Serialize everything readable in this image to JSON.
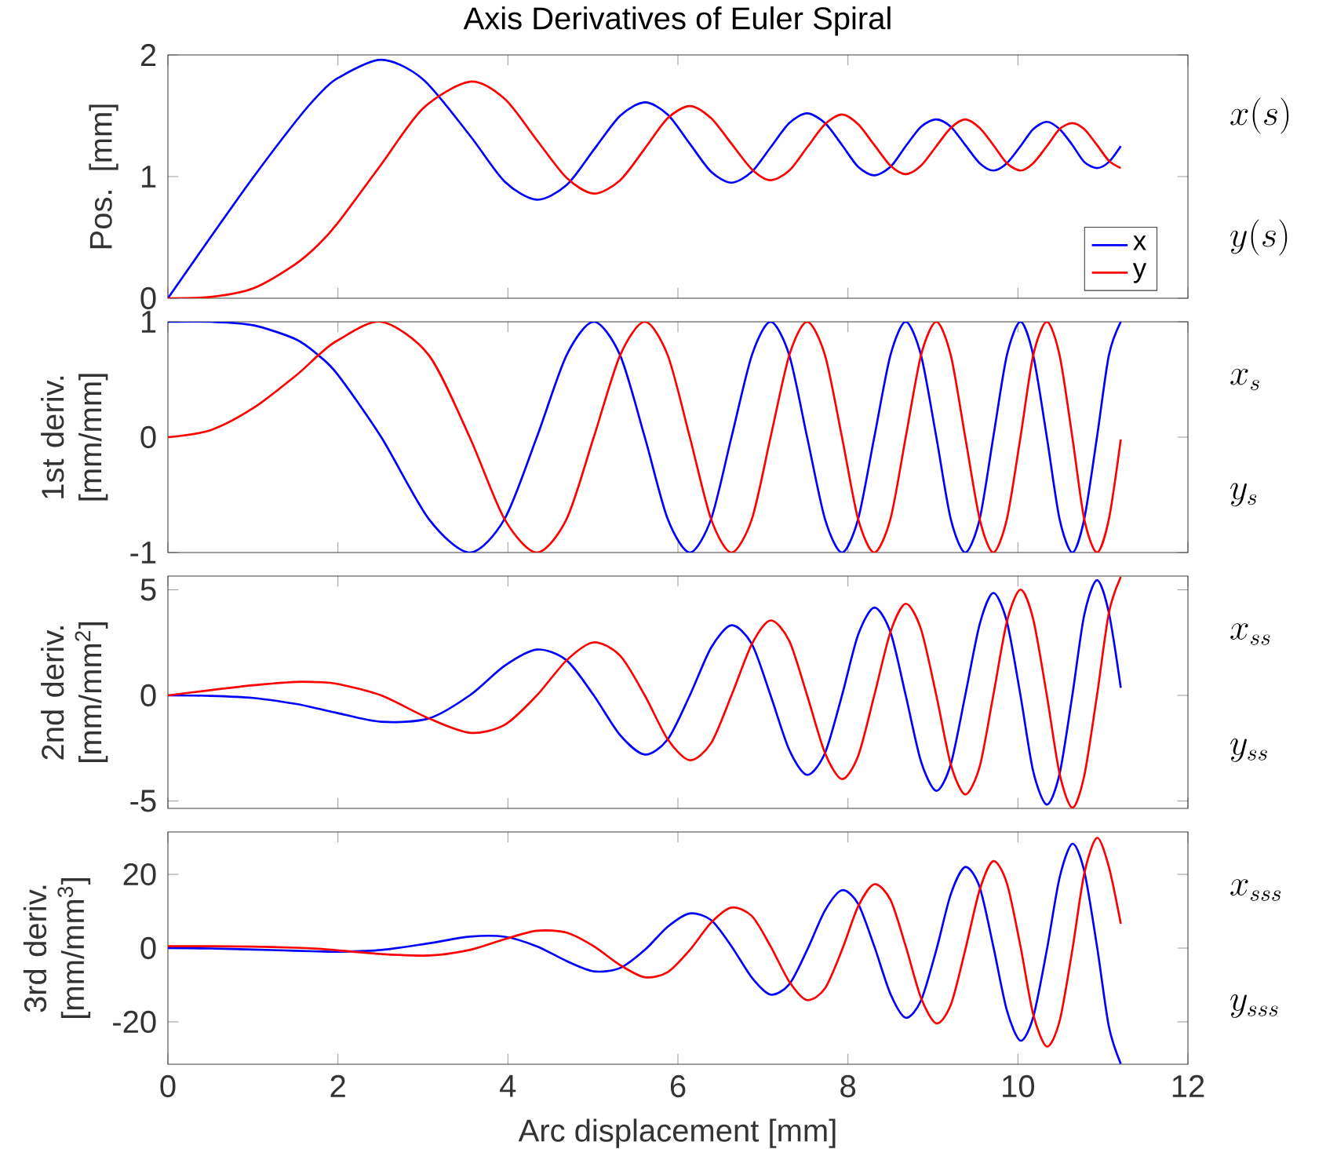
{
  "chart_data": [
    {
      "type": "line",
      "title": "Axis Derivatives of Euler Spiral",
      "ylabel": "Pos. [mm]",
      "xlim": [
        0,
        12
      ],
      "ylim": [
        0,
        2
      ],
      "xticks": [
        0,
        2,
        4,
        6,
        8,
        10,
        12
      ],
      "yticks": [
        0,
        1,
        2
      ],
      "tick_labels": "y",
      "legend": "bottom right",
      "annotations": [
        "x(s)",
        "y(s)"
      ],
      "x": [
        0,
        0.5,
        1,
        1.5,
        1.77,
        2,
        2.51,
        3,
        3.55,
        3.96,
        4.34,
        4.69,
        5.01,
        5.32,
        5.61,
        5.88,
        6.14,
        6.39,
        6.63,
        6.87,
        7.09,
        7.31,
        7.52,
        7.73,
        7.93,
        8.12,
        8.31,
        8.5,
        8.68,
        8.86,
        9.04,
        9.21,
        9.38,
        9.55,
        9.71,
        9.87,
        10.03,
        10.18,
        10.34,
        10.49,
        10.64,
        10.78,
        10.93,
        11.07,
        11.21
      ],
      "series": [
        {
          "name": "x",
          "color": "#0000ff",
          "values": [
            0,
            0.5,
            0.99,
            1.45,
            1.67,
            1.81,
            1.96,
            1.8,
            1.34,
            0.96,
            0.81,
            0.93,
            1.22,
            1.5,
            1.61,
            1.51,
            1.27,
            1.04,
            0.95,
            1.04,
            1.24,
            1.44,
            1.52,
            1.44,
            1.26,
            1.08,
            1.01,
            1.08,
            1.25,
            1.41,
            1.47,
            1.41,
            1.26,
            1.11,
            1.05,
            1.11,
            1.25,
            1.39,
            1.45,
            1.39,
            1.26,
            1.12,
            1.07,
            1.12,
            1.25
          ]
        },
        {
          "name": "y",
          "color": "#ff0000",
          "values": [
            0,
            0.01,
            0.08,
            0.28,
            0.44,
            0.62,
            1.1,
            1.56,
            1.78,
            1.64,
            1.3,
            0.99,
            0.86,
            0.97,
            1.23,
            1.48,
            1.58,
            1.48,
            1.27,
            1.06,
            0.97,
            1.05,
            1.24,
            1.43,
            1.51,
            1.43,
            1.26,
            1.09,
            1.02,
            1.09,
            1.25,
            1.4,
            1.47,
            1.4,
            1.26,
            1.11,
            1.05,
            1.11,
            1.25,
            1.39,
            1.44,
            1.39,
            1.26,
            1.13,
            1.07
          ]
        }
      ]
    },
    {
      "type": "line",
      "ylabel": "1st deriv. [mm/mm]",
      "xlim": [
        0,
        12
      ],
      "ylim": [
        -1,
        1
      ],
      "xticks": [
        0,
        2,
        4,
        6,
        8,
        10,
        12
      ],
      "yticks": [
        -1,
        0,
        1
      ],
      "tick_labels": "y",
      "annotations": [
        "x_{s}",
        "y_{s}"
      ],
      "x": [
        0,
        0.5,
        1,
        1.5,
        1.77,
        2,
        2.51,
        3.07,
        3.55,
        3.96,
        4.34,
        4.69,
        5.01,
        5.32,
        5.61,
        5.88,
        6.14,
        6.39,
        6.63,
        6.87,
        7.09,
        7.31,
        7.52,
        7.73,
        7.93,
        8.12,
        8.31,
        8.5,
        8.68,
        8.86,
        9.04,
        9.21,
        9.38,
        9.55,
        9.71,
        9.87,
        10.03,
        10.18,
        10.34,
        10.49,
        10.64,
        10.78,
        10.93,
        11.07,
        11.21
      ],
      "series": [
        {
          "color": "#0000ff",
          "values": [
            1,
            1,
            0.97,
            0.85,
            0.71,
            0.54,
            0,
            -0.71,
            -1,
            -0.71,
            0,
            0.71,
            1,
            0.71,
            0,
            -0.71,
            -1,
            -0.71,
            0,
            0.71,
            1,
            0.71,
            0,
            -0.71,
            -1,
            -0.71,
            0,
            0.71,
            1,
            0.71,
            0,
            -0.71,
            -1,
            -0.71,
            0,
            0.71,
            1,
            0.71,
            0,
            -0.71,
            -1,
            -0.71,
            0,
            0.71,
            1
          ]
        },
        {
          "color": "#ff0000",
          "values": [
            0,
            0.06,
            0.25,
            0.53,
            0.71,
            0.84,
            1,
            0.71,
            0,
            -0.71,
            -1,
            -0.71,
            0,
            0.71,
            1,
            0.71,
            0,
            -0.71,
            -1,
            -0.71,
            0,
            0.71,
            1,
            0.71,
            0,
            -0.71,
            -1,
            -0.71,
            0,
            0.71,
            1,
            0.71,
            0,
            -0.71,
            -1,
            -0.71,
            0,
            0.71,
            1,
            0.71,
            0,
            -0.71,
            -1,
            -0.71,
            -0.02
          ]
        }
      ]
    },
    {
      "type": "line",
      "ylabel": "2nd deriv. [mm/mm$^{2}$]",
      "xlim": [
        0,
        12
      ],
      "ylim": [
        -5.35,
        5.65
      ],
      "xticks": [
        0,
        2,
        4,
        6,
        8,
        10,
        12
      ],
      "yticks": [
        -5,
        0,
        5
      ],
      "tick_labels": "y",
      "annotations": [
        "x_{ss}",
        "y_{ss}"
      ],
      "x": [
        0,
        0.5,
        1,
        1.5,
        1.77,
        2,
        2.51,
        3.07,
        3.55,
        3.96,
        4.34,
        4.69,
        5.01,
        5.32,
        5.61,
        5.88,
        6.14,
        6.39,
        6.63,
        6.87,
        7.09,
        7.31,
        7.52,
        7.73,
        7.93,
        8.12,
        8.31,
        8.5,
        8.68,
        8.86,
        9.04,
        9.21,
        9.38,
        9.55,
        9.71,
        9.87,
        10.03,
        10.18,
        10.34,
        10.49,
        10.64,
        10.78,
        10.93,
        11.07,
        11.21
      ],
      "series": [
        {
          "color": "#0000ff",
          "values": [
            0,
            -0.02,
            -0.12,
            -0.4,
            -0.63,
            -0.84,
            -1.25,
            -1.09,
            0,
            1.4,
            2.17,
            1.66,
            0,
            -1.88,
            -2.8,
            -2.08,
            0,
            2.26,
            3.32,
            2.43,
            0,
            -2.58,
            -3.76,
            -2.73,
            0,
            2.87,
            4.16,
            3.0,
            0,
            -3.13,
            -4.52,
            -3.26,
            0,
            3.37,
            4.85,
            3.49,
            0,
            -3.6,
            -5.17,
            -3.71,
            0,
            3.81,
            5.46,
            3.91,
            0.36
          ]
        },
        {
          "color": "#ff0000",
          "values": [
            0,
            0.25,
            0.48,
            0.64,
            0.63,
            0.54,
            0,
            -1.09,
            -1.77,
            -1.4,
            0,
            1.66,
            2.51,
            1.88,
            0,
            -2.08,
            -3.07,
            -2.26,
            0,
            2.43,
            3.55,
            2.58,
            0,
            -2.73,
            -3.96,
            -2.87,
            0,
            3.0,
            4.34,
            3.13,
            0,
            -3.26,
            -4.69,
            -3.37,
            0,
            3.49,
            5.01,
            3.6,
            0,
            -3.71,
            -5.32,
            -3.81,
            0,
            3.91,
            5.61
          ]
        }
      ]
    },
    {
      "type": "line",
      "xlabel": "Arc displacement [mm]",
      "ylabel": "3rd deriv. [mm/mm$^{3}$]",
      "xlim": [
        0,
        12
      ],
      "ylim": [
        -31.5,
        31.5
      ],
      "xticks": [
        0,
        2,
        4,
        6,
        8,
        10,
        12
      ],
      "yticks": [
        -20,
        0,
        20
      ],
      "annotations": [
        "x_{sss}",
        "y_{sss}"
      ],
      "x": [
        0,
        0.5,
        1,
        1.5,
        1.77,
        2,
        2.51,
        3.07,
        3.55,
        3.96,
        4.34,
        4.69,
        5.01,
        5.32,
        5.61,
        5.88,
        6.14,
        6.39,
        6.63,
        6.87,
        7.09,
        7.31,
        7.52,
        7.73,
        7.93,
        8.12,
        8.31,
        8.5,
        8.68,
        8.86,
        9.04,
        9.21,
        9.38,
        9.55,
        9.71,
        9.87,
        10.03,
        10.18,
        10.34,
        10.49,
        10.64,
        10.78,
        10.93,
        11.07,
        11.21
      ],
      "series": [
        {
          "color": "#0000ff",
          "values": [
            0,
            -0.1,
            -0.4,
            -0.7,
            -0.9,
            -1.0,
            -0.5,
            1.3,
            3.1,
            3.1,
            0.5,
            -3.5,
            -6.3,
            -5.4,
            -0.5,
            5.8,
            9.4,
            7.6,
            0.5,
            -8.0,
            -12.6,
            -9.8,
            -0.5,
            10.2,
            15.7,
            12.0,
            0.5,
            -12.4,
            -18.9,
            -14.2,
            -0.5,
            14.6,
            22.0,
            16.5,
            0.5,
            -16.9,
            -25.1,
            -18.7,
            -0.5,
            19.1,
            28.3,
            20.9,
            0.5,
            -21.3,
            -31.4
          ]
        },
        {
          "color": "#ff0000",
          "values": [
            0.5,
            0.5,
            0.4,
            0.1,
            -0.2,
            -0.6,
            -1.6,
            -2.0,
            -0.5,
            2.4,
            4.7,
            4.2,
            0.5,
            -4.6,
            -7.9,
            -6.5,
            -0.5,
            6.9,
            11.0,
            8.7,
            0.5,
            -9.1,
            -14.1,
            -10.9,
            -0.5,
            11.3,
            17.3,
            13.1,
            0.5,
            -13.5,
            -20.4,
            -15.4,
            -0.5,
            15.8,
            23.6,
            17.6,
            0.5,
            -18.0,
            -26.7,
            -19.8,
            -0.5,
            20.2,
            29.9,
            22.0,
            6.6
          ]
        }
      ]
    }
  ]
}
